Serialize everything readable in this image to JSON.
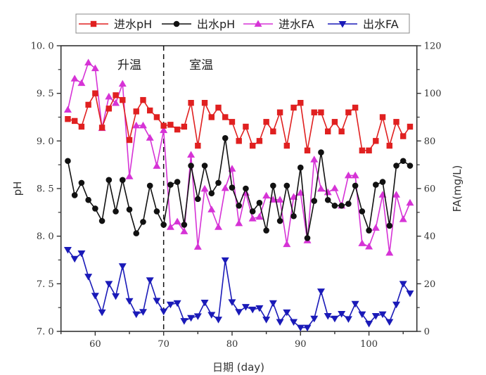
{
  "chart_data": {
    "type": "line",
    "title": "",
    "xlabel": "日期 (day)",
    "ylabel": "pH",
    "ylabel_right": "FA(mg/L)",
    "xlim": [
      55,
      107
    ],
    "ylim": [
      7.0,
      10.0
    ],
    "ylim_right": [
      0,
      120
    ],
    "x_ticks": [
      60,
      70,
      80,
      90,
      100
    ],
    "y_ticks": [
      "7.0",
      "7.5",
      "8.0",
      "8.5",
      "9.0",
      "9.5",
      "10.0"
    ],
    "y_ticks_right": [
      "0",
      "20",
      "40",
      "60",
      "80",
      "100",
      "120"
    ],
    "grid": false,
    "legend_position": "top",
    "divider": {
      "x": 70,
      "style": "dashed"
    },
    "annotations": [
      {
        "text": "升温",
        "x": 65,
        "y": 9.8
      },
      {
        "text": "室温",
        "x": 75.5,
        "y": 9.8
      }
    ],
    "x": [
      56,
      57,
      58,
      59,
      60,
      61,
      62,
      63,
      64,
      65,
      66,
      67,
      68,
      69,
      70,
      71,
      72,
      73,
      74,
      75,
      76,
      77,
      78,
      79,
      80,
      81,
      82,
      83,
      84,
      85,
      86,
      87,
      88,
      89,
      90,
      91,
      92,
      93,
      94,
      95,
      96,
      97,
      98,
      99,
      100,
      101,
      102,
      103,
      104,
      105,
      106
    ],
    "series": [
      {
        "name": "进水pH",
        "axis": "left",
        "color": "#e02020",
        "marker": "square",
        "values": [
          9.23,
          9.21,
          9.15,
          9.38,
          9.5,
          9.14,
          9.34,
          9.48,
          9.43,
          9.01,
          9.31,
          9.43,
          9.32,
          9.25,
          9.16,
          9.17,
          9.12,
          9.15,
          9.4,
          8.95,
          9.4,
          9.25,
          9.35,
          9.25,
          9.2,
          9.0,
          9.15,
          8.95,
          9.0,
          9.2,
          9.1,
          9.3,
          8.95,
          9.35,
          9.4,
          8.9,
          9.3,
          9.3,
          9.1,
          9.2,
          9.1,
          9.3,
          9.35,
          8.9,
          8.9,
          9.0,
          9.25,
          8.95,
          9.2,
          9.05,
          9.15
        ]
      },
      {
        "name": "出水pH",
        "axis": "left",
        "color": "#111111",
        "marker": "circle",
        "values": [
          8.79,
          8.43,
          8.56,
          8.38,
          8.29,
          8.16,
          8.59,
          8.26,
          8.59,
          8.28,
          8.03,
          8.15,
          8.53,
          8.26,
          8.12,
          8.54,
          8.57,
          8.12,
          8.74,
          8.39,
          8.74,
          8.45,
          8.56,
          9.03,
          8.51,
          8.32,
          8.5,
          8.26,
          8.35,
          8.06,
          8.53,
          8.16,
          8.53,
          8.21,
          8.72,
          7.98,
          8.37,
          8.88,
          8.38,
          8.32,
          8.32,
          8.34,
          8.53,
          8.26,
          8.06,
          8.54,
          8.57,
          8.11,
          8.74,
          8.79,
          8.74
        ]
      },
      {
        "name": "进水FA",
        "axis": "right",
        "color": "#d633d6",
        "marker": "triangle-up",
        "values": [
          93.1,
          106.2,
          104.3,
          112.9,
          110.5,
          85.4,
          98.6,
          95.9,
          104.0,
          65.1,
          86.5,
          86.5,
          81.3,
          69.5,
          84.5,
          43.8,
          46.1,
          42.0,
          74.2,
          35.5,
          59.9,
          51.2,
          43.8,
          60.2,
          68.3,
          45.4,
          58.2,
          47.4,
          48.1,
          57.0,
          55.3,
          55.3,
          36.6,
          56.5,
          58.2,
          38.2,
          72.2,
          59.9,
          58.4,
          60.1,
          52.8,
          65.5,
          65.5,
          37.0,
          35.6,
          43.5,
          57.4,
          33.0,
          57.4,
          47.1,
          54.0
        ]
      },
      {
        "name": "出水FA",
        "axis": "right",
        "color": "#1a1ab8",
        "marker": "triangle-down",
        "values": [
          34.3,
          30.5,
          32.8,
          23.0,
          15.0,
          8.0,
          20.0,
          14.8,
          27.4,
          12.8,
          7.2,
          8.2,
          21.5,
          12.9,
          8.4,
          11.3,
          11.9,
          4.4,
          5.7,
          6.4,
          12.1,
          7.0,
          5.0,
          29.9,
          12.3,
          8.2,
          10.3,
          9.2,
          9.8,
          5.0,
          11.9,
          4.0,
          8.0,
          4.0,
          1.6,
          1.6,
          5.4,
          16.8,
          6.5,
          5.4,
          7.4,
          5.2,
          11.6,
          7.2,
          3.3,
          6.5,
          7.2,
          4.0,
          11.3,
          20.0,
          16.0
        ]
      }
    ]
  }
}
